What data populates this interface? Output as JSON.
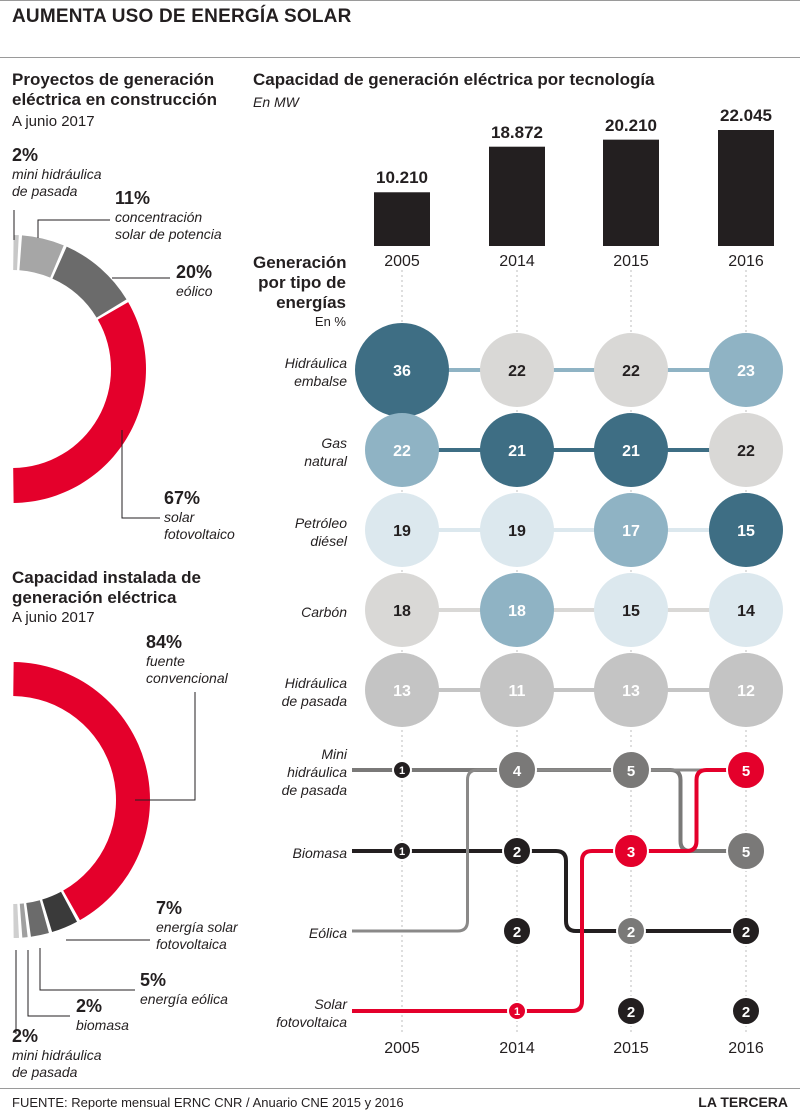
{
  "header": {
    "title": "AUMENTA USO DE ENERGÍA SOLAR"
  },
  "source": "FUENTE: Reporte mensual ERNC CNR / Anuario CNE 2015 y 2016",
  "brand": "LA TERCERA",
  "colors": {
    "red": "#e4002b",
    "dark": "#231f20",
    "teal_dark": "#3e6e84",
    "teal_mid": "#8fb3c4",
    "teal_light": "#dce8ee",
    "gray_light": "#d9d8d6",
    "gray_mid": "#c4c4c4",
    "gray_dark": "#7a7978"
  },
  "chart_data": [
    {
      "type": "pie",
      "title": "Proyectos de generación eléctrica en construcción",
      "subtitle": "A junio 2017",
      "slices": [
        {
          "label": "mini hidráulica de pasada",
          "value": 2,
          "color": "#c8c8c8"
        },
        {
          "label": "concentración solar de potencia",
          "value": 11,
          "color": "#a6a6a6"
        },
        {
          "label": "eólico",
          "value": 20,
          "color": "#6b6b6b"
        },
        {
          "label": "solar fotovoltaico",
          "value": 67,
          "color": "#e4002b"
        }
      ]
    },
    {
      "type": "pie",
      "title": "Capacidad instalada de generación eléctrica",
      "subtitle": "A junio 2017",
      "slices": [
        {
          "label": "fuente convencional",
          "value": 84,
          "color": "#e4002b"
        },
        {
          "label": "energía solar fotovoltaica",
          "value": 7,
          "color": "#3a3a3a"
        },
        {
          "label": "energía eólica",
          "value": 5,
          "color": "#6b6b6b"
        },
        {
          "label": "biomasa",
          "value": 2,
          "color": "#a0a0a0"
        },
        {
          "label": "mini hidráulica de pasada",
          "value": 2,
          "color": "#cfcfcf"
        }
      ]
    },
    {
      "type": "bar",
      "title": "Capacidad de generación eléctrica por tecnología",
      "subtitle": "En MW",
      "categories": [
        "2005",
        "2014",
        "2015",
        "2016"
      ],
      "values": [
        10210,
        18872,
        20210,
        22045
      ],
      "labels": [
        "10.210",
        "18.872",
        "20.210",
        "22.045"
      ]
    },
    {
      "type": "table",
      "title": "Generación por tipo de energías",
      "subtitle": "En %",
      "years": [
        "2005",
        "2014",
        "2015",
        "2016"
      ],
      "rows": [
        {
          "name": "Hidráulica embalse",
          "values": [
            36,
            22,
            22,
            23
          ]
        },
        {
          "name": "Gas natural",
          "values": [
            22,
            21,
            21,
            22
          ]
        },
        {
          "name": "Petróleo diésel",
          "values": [
            19,
            19,
            17,
            15
          ]
        },
        {
          "name": "Carbón",
          "values": [
            18,
            18,
            15,
            14
          ]
        },
        {
          "name": "Hidráulica de pasada",
          "values": [
            13,
            11,
            13,
            12
          ]
        },
        {
          "name": "Mini hidráulica de pasada",
          "values": [
            1,
            4,
            5,
            5
          ]
        },
        {
          "name": "Biomasa",
          "values": [
            1,
            2,
            3,
            5
          ]
        },
        {
          "name": "Eólica",
          "values": [
            null,
            2,
            2,
            2
          ]
        },
        {
          "name": "Solar fotovoltaica",
          "values": [
            null,
            1,
            2,
            2
          ]
        }
      ]
    }
  ],
  "donut1": {
    "title_l1": "Proyectos de generación",
    "title_l2": "eléctrica en construcción",
    "sub": "A junio 2017",
    "p1": "2%",
    "l1a": "mini hidráulica",
    "l1b": "de pasada",
    "p2": "11%",
    "l2a": "concentración",
    "l2b": "solar de potencia",
    "p3": "20%",
    "l3a": "eólico",
    "p4": "67%",
    "l4a": "solar",
    "l4b": "fotovoltaico"
  },
  "donut2": {
    "title_l1": "Capacidad instalada de",
    "title_l2": "generación eléctrica",
    "sub": "A junio 2017",
    "p1": "84%",
    "l1a": "fuente",
    "l1b": "convencional",
    "p2": "7%",
    "l2a": "energía solar",
    "l2b": "fotovoltaica",
    "p3": "5%",
    "l3a": "energía eólica",
    "p4": "2%",
    "l4a": "biomasa",
    "p5": "2%",
    "l5a": "mini hidráulica",
    "l5b": "de pasada"
  },
  "bars": {
    "title": "Capacidad de generación eléctrica por tecnología",
    "sub": "En MW"
  },
  "matrix": {
    "title_l1": "Generación",
    "title_l2": "por tipo de",
    "title_l3": "energías",
    "sub": "En %",
    "labels": [
      [
        "Hidráulica",
        "embalse"
      ],
      [
        "Gas",
        "natural"
      ],
      [
        "Petróleo",
        "diésel"
      ],
      [
        "Carbón"
      ],
      [
        "Hidráulica",
        "de pasada"
      ],
      [
        "Mini",
        "hidráulica",
        "de pasada"
      ],
      [
        "Biomasa"
      ],
      [
        "Eólica"
      ],
      [
        "Solar",
        "fotovoltaica"
      ]
    ]
  }
}
